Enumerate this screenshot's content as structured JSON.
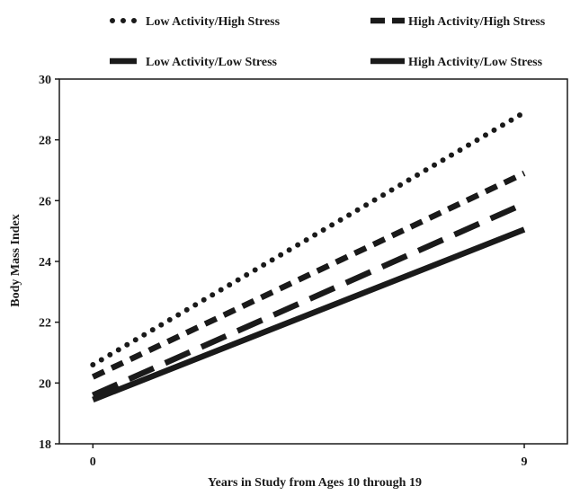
{
  "chart_data": {
    "type": "line",
    "title": "",
    "xlabel": "Years in Study from Ages 10 through 19",
    "ylabel": "Body Mass Index",
    "x": [
      0,
      9
    ],
    "xticks": [
      0,
      9
    ],
    "xlim": [
      -0.7,
      9.9
    ],
    "ylim": [
      18,
      30
    ],
    "yticks": [
      18,
      20,
      22,
      24,
      26,
      28,
      30
    ],
    "grid": false,
    "legend_position": "top",
    "series": [
      {
        "name": "Low Activity/High Stress",
        "values": [
          20.6,
          28.9
        ],
        "line_style": "dotted",
        "color": "#1a1a1a"
      },
      {
        "name": "High Activity/High Stress",
        "values": [
          20.2,
          26.9
        ],
        "line_style": "dashed",
        "color": "#1a1a1a"
      },
      {
        "name": "Low Activity/Low Stress",
        "values": [
          19.6,
          25.9
        ],
        "line_style": "long-dashed",
        "color": "#1a1a1a"
      },
      {
        "name": "High Activity/Low Stress",
        "values": [
          19.45,
          25.05
        ],
        "line_style": "solid",
        "color": "#1a1a1a"
      }
    ]
  }
}
